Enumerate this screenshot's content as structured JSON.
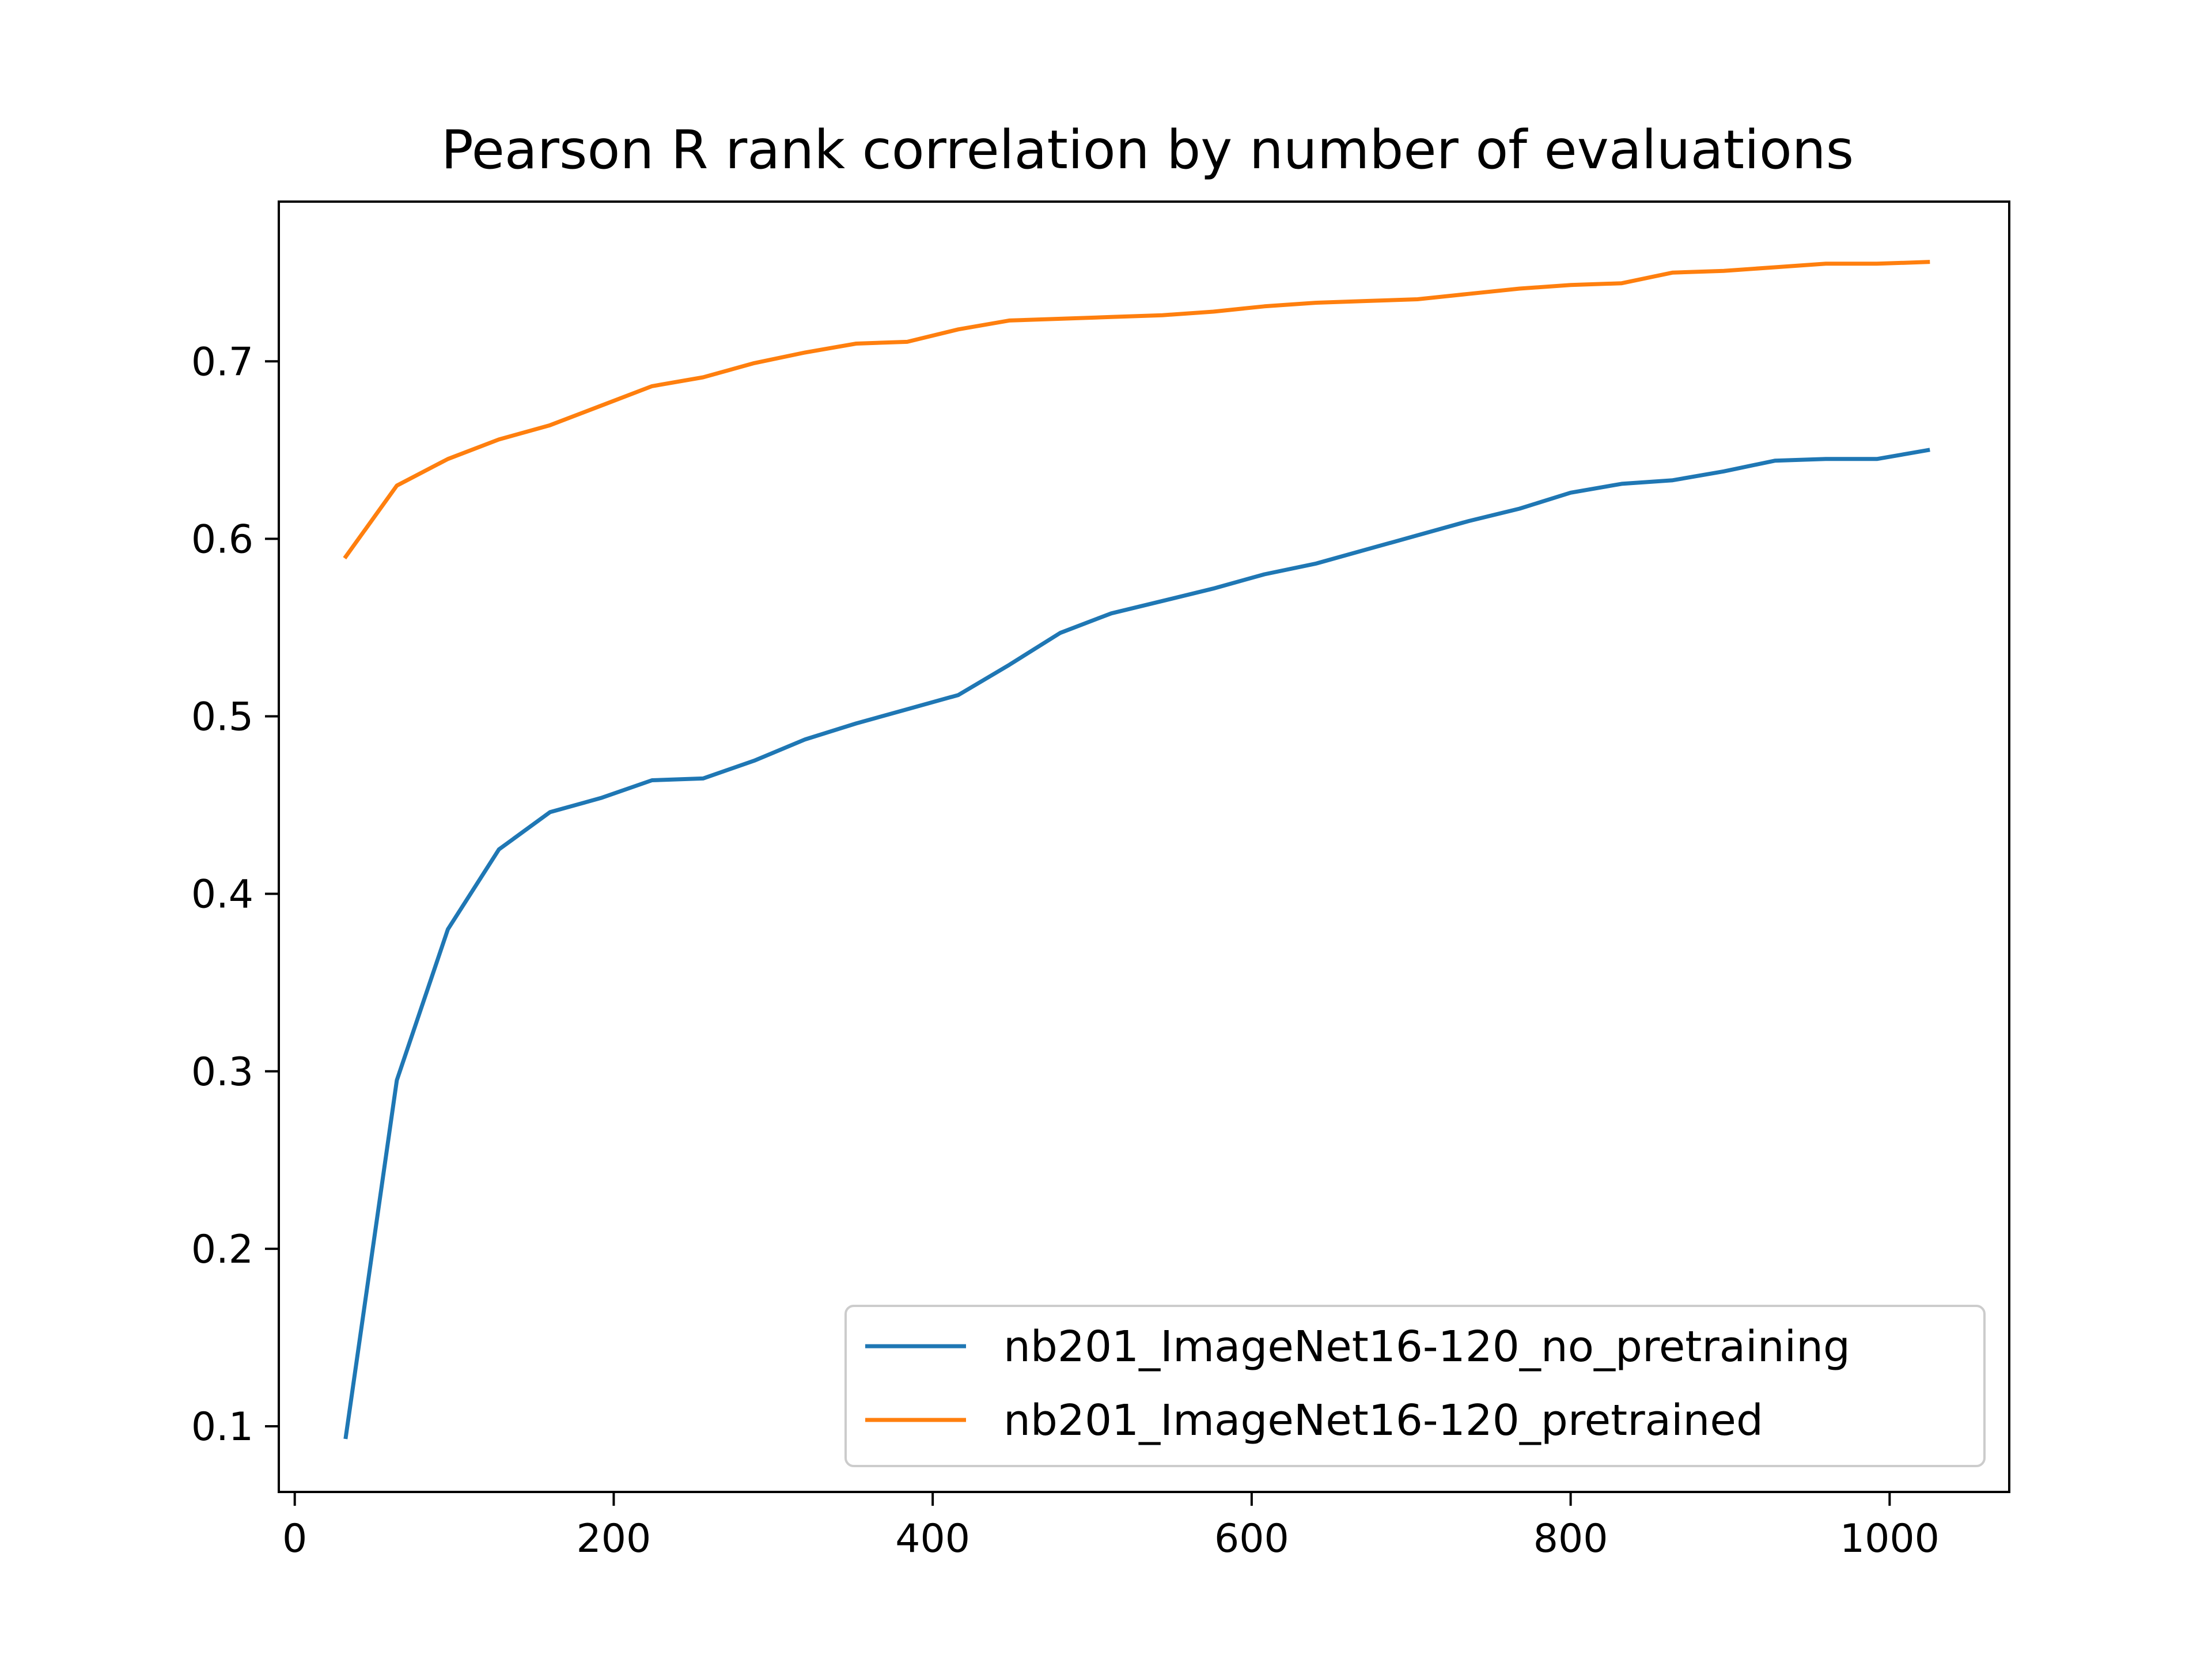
{
  "chart_data": {
    "type": "line",
    "title": "Pearson R rank correlation by number of evaluations",
    "xlabel": "",
    "ylabel": "",
    "xlim": [
      -10,
      1075
    ],
    "ylim": [
      0.063,
      0.79
    ],
    "x_ticks": [
      0,
      200,
      400,
      600,
      800,
      1000
    ],
    "y_ticks": [
      0.1,
      0.2,
      0.3,
      0.4,
      0.5,
      0.6,
      0.7
    ],
    "x_tick_labels": [
      "0",
      "200",
      "400",
      "600",
      "800",
      "1000"
    ],
    "y_tick_labels": [
      "0.1",
      "0.2",
      "0.3",
      "0.4",
      "0.5",
      "0.6",
      "0.7"
    ],
    "grid": false,
    "legend_position": "lower right",
    "x": [
      32,
      64,
      96,
      128,
      160,
      192,
      224,
      256,
      288,
      320,
      352,
      384,
      416,
      448,
      480,
      512,
      544,
      576,
      608,
      640,
      672,
      704,
      736,
      768,
      800,
      832,
      864,
      896,
      928,
      960,
      992,
      1024
    ],
    "series": [
      {
        "name": "nb201_ImageNet16-120_no_pretraining",
        "color": "#1f77b4",
        "values": [
          0.094,
          0.295,
          0.38,
          0.425,
          0.446,
          0.454,
          0.464,
          0.465,
          0.475,
          0.487,
          0.496,
          0.504,
          0.512,
          0.529,
          0.547,
          0.558,
          0.565,
          0.572,
          0.58,
          0.586,
          0.594,
          0.602,
          0.61,
          0.617,
          0.626,
          0.631,
          0.633,
          0.638,
          0.644,
          0.645,
          0.645,
          0.65
        ]
      },
      {
        "name": "nb201_ImageNet16-120_pretrained",
        "color": "#ff7f0e",
        "values": [
          0.59,
          0.63,
          0.645,
          0.656,
          0.664,
          0.675,
          0.686,
          0.691,
          0.699,
          0.705,
          0.71,
          0.711,
          0.718,
          0.723,
          0.724,
          0.725,
          0.726,
          0.728,
          0.731,
          0.733,
          0.734,
          0.735,
          0.738,
          0.741,
          0.743,
          0.744,
          0.75,
          0.751,
          0.753,
          0.755,
          0.755,
          0.756
        ]
      }
    ]
  }
}
